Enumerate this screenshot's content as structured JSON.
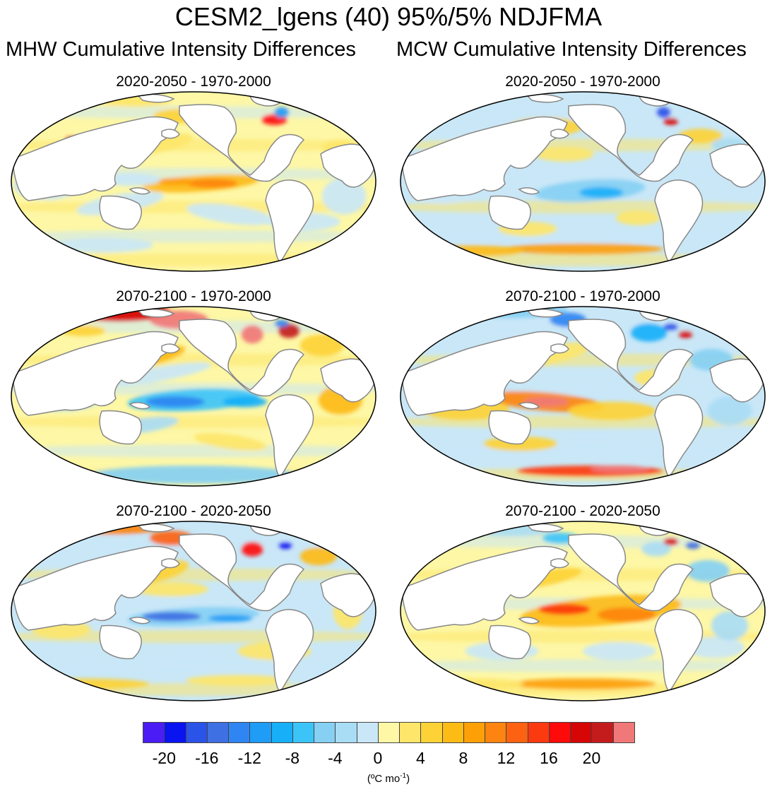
{
  "figure": {
    "title": "CESM2_lgens (40) 95%/5% NDJFMA",
    "left_column_title": "MHW Cumulative Intensity Differences",
    "right_column_title": "MCW Cumulative Intensity Differences"
  },
  "panels": [
    {
      "column": "MHW",
      "label": "2020-2050 - 1970-2000",
      "pattern": "mhw1"
    },
    {
      "column": "MCW",
      "label": "2020-2050 - 1970-2000",
      "pattern": "mcw1"
    },
    {
      "column": "MHW",
      "label": "2070-2100 - 1970-2000",
      "pattern": "mhw2"
    },
    {
      "column": "MCW",
      "label": "2070-2100 - 1970-2000",
      "pattern": "mcw2"
    },
    {
      "column": "MHW",
      "label": "2070-2100 - 2020-2050",
      "pattern": "mhw3"
    },
    {
      "column": "MCW",
      "label": "2070-2100 - 2020-2050",
      "pattern": "mcw3"
    }
  ],
  "colorbar": {
    "colors": [
      "#4c1cf5",
      "#0a14f0",
      "#2a53e8",
      "#3e6fe3",
      "#2f86f2",
      "#1e9cf6",
      "#17b0f8",
      "#3cc4f8",
      "#86d0f4",
      "#a9dcf5",
      "#c9e7f7",
      "#fdf7a6",
      "#fde66a",
      "#fdd236",
      "#fdbb16",
      "#fda008",
      "#fd8410",
      "#fd6212",
      "#fc3a10",
      "#fd0a0a",
      "#d60606",
      "#c41c1c",
      "#f07878"
    ],
    "tick_labels": [
      "-20",
      "-16",
      "-12",
      "-8",
      "-4",
      "0",
      "4",
      "8",
      "12",
      "16",
      "20"
    ],
    "units_label": "(ºC mo-1)",
    "units_parts": {
      "open": "(",
      "degree": "º",
      "unit": "C mo",
      "sup": "-1",
      "close": ")"
    },
    "units_superscript": "-1"
  }
}
